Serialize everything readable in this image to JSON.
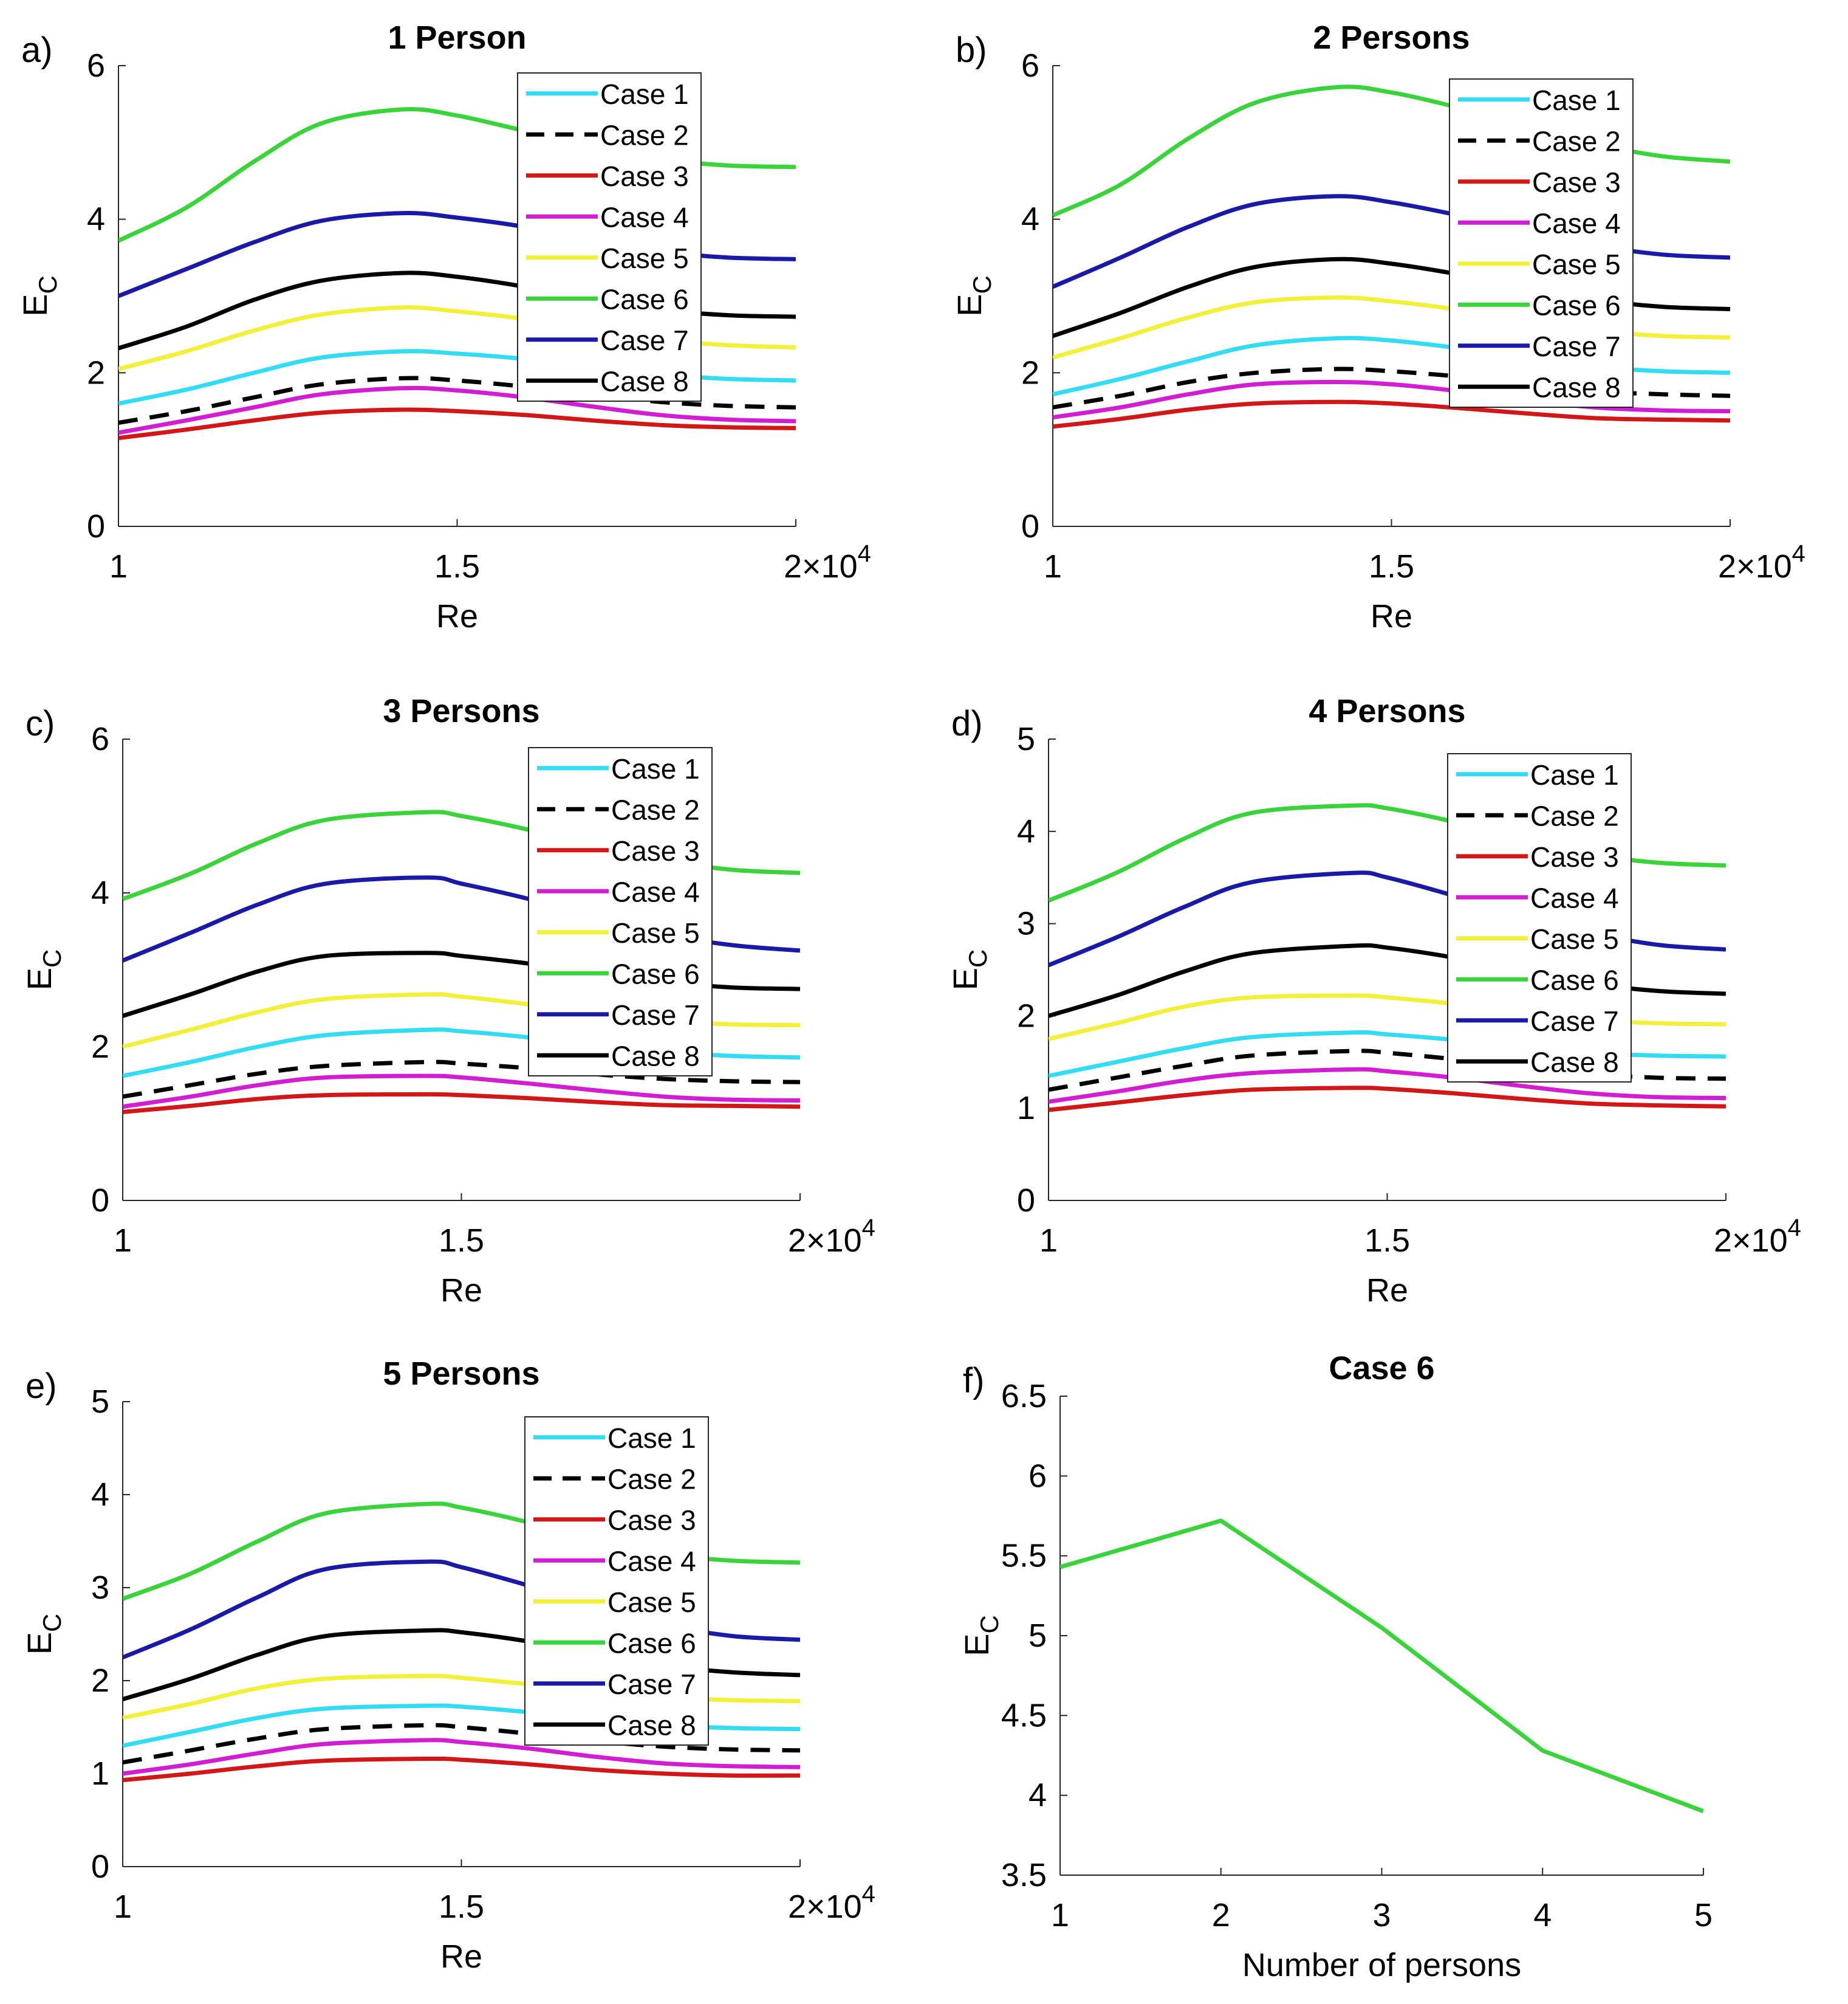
{
  "figure": {
    "panels_label": "Six subplots of E_C versus Re and versus number of persons"
  },
  "chart_data": [
    {
      "type": "line",
      "panel_letter": "a)",
      "title": "1 Person",
      "xlabel": "Re",
      "ylabel": "E",
      "ylabel_sub": "C",
      "xlim": [
        1,
        2
      ],
      "ylim": [
        0,
        6
      ],
      "x_exponent_prefix": "2×10",
      "x_exponent": "4",
      "xticks": [
        {
          "v": 1,
          "label": "1"
        },
        {
          "v": 1.5,
          "label": "1.5"
        }
      ],
      "yticks": [
        {
          "v": 0,
          "label": "0"
        },
        {
          "v": 2,
          "label": "2"
        },
        {
          "v": 4,
          "label": "4"
        },
        {
          "v": 6,
          "label": "6"
        }
      ],
      "x": [
        1.0,
        1.1,
        1.2,
        1.3,
        1.42,
        1.5,
        1.6,
        1.7,
        1.8,
        1.9,
        2.0
      ],
      "series": [
        {
          "name": "Case 1",
          "color": "#33dcf2",
          "dash": "",
          "values": [
            1.6,
            1.78,
            2.0,
            2.2,
            2.28,
            2.25,
            2.18,
            2.08,
            1.98,
            1.92,
            1.9
          ]
        },
        {
          "name": "Case 2",
          "color": "#000000",
          "dash": "dash",
          "values": [
            1.35,
            1.5,
            1.68,
            1.85,
            1.93,
            1.9,
            1.82,
            1.72,
            1.62,
            1.57,
            1.55
          ]
        },
        {
          "name": "Case 3",
          "color": "#d01818",
          "dash": "",
          "values": [
            1.15,
            1.26,
            1.38,
            1.48,
            1.52,
            1.5,
            1.45,
            1.38,
            1.32,
            1.29,
            1.28
          ]
        },
        {
          "name": "Case 4",
          "color": "#d21ed2",
          "dash": "",
          "values": [
            1.22,
            1.38,
            1.55,
            1.72,
            1.8,
            1.77,
            1.68,
            1.56,
            1.45,
            1.39,
            1.37
          ]
        },
        {
          "name": "Case 5",
          "color": "#f2f03a",
          "dash": "",
          "values": [
            2.05,
            2.28,
            2.55,
            2.76,
            2.85,
            2.8,
            2.7,
            2.56,
            2.43,
            2.36,
            2.33
          ]
        },
        {
          "name": "Case 6",
          "color": "#3bd33b",
          "dash": "",
          "values": [
            3.72,
            4.15,
            4.75,
            5.25,
            5.43,
            5.35,
            5.15,
            4.95,
            4.78,
            4.7,
            4.68
          ]
        },
        {
          "name": "Case 7",
          "color": "#1a1aa6",
          "dash": "",
          "values": [
            3.0,
            3.35,
            3.7,
            3.98,
            4.08,
            4.02,
            3.9,
            3.72,
            3.58,
            3.5,
            3.48
          ]
        },
        {
          "name": "Case 8",
          "color": "#000000",
          "dash": "",
          "values": [
            2.32,
            2.6,
            2.95,
            3.2,
            3.3,
            3.25,
            3.12,
            2.95,
            2.82,
            2.75,
            2.73
          ]
        }
      ]
    },
    {
      "type": "line",
      "panel_letter": "b)",
      "title": "2 Persons",
      "xlabel": "Re",
      "ylabel": "E",
      "ylabel_sub": "C",
      "xlim": [
        1,
        2
      ],
      "ylim": [
        0,
        6
      ],
      "x_exponent_prefix": "2×10",
      "x_exponent": "4",
      "xticks": [
        {
          "v": 1,
          "label": "1"
        },
        {
          "v": 1.5,
          "label": "1.5"
        }
      ],
      "yticks": [
        {
          "v": 0,
          "label": "0"
        },
        {
          "v": 2,
          "label": "2"
        },
        {
          "v": 4,
          "label": "4"
        },
        {
          "v": 6,
          "label": "6"
        }
      ],
      "x": [
        1.0,
        1.1,
        1.2,
        1.3,
        1.42,
        1.5,
        1.6,
        1.7,
        1.8,
        1.9,
        2.0
      ],
      "series": [
        {
          "name": "Case 1",
          "color": "#33dcf2",
          "dash": "",
          "values": [
            1.72,
            1.92,
            2.15,
            2.36,
            2.45,
            2.42,
            2.32,
            2.2,
            2.08,
            2.02,
            2.0
          ]
        },
        {
          "name": "Case 2",
          "color": "#000000",
          "dash": "dash",
          "values": [
            1.55,
            1.7,
            1.88,
            2.0,
            2.05,
            2.02,
            1.95,
            1.85,
            1.76,
            1.72,
            1.7
          ]
        },
        {
          "name": "Case 3",
          "color": "#d01818",
          "dash": "",
          "values": [
            1.3,
            1.4,
            1.52,
            1.6,
            1.62,
            1.6,
            1.54,
            1.47,
            1.41,
            1.39,
            1.38
          ]
        },
        {
          "name": "Case 4",
          "color": "#d21ed2",
          "dash": "",
          "values": [
            1.42,
            1.55,
            1.72,
            1.85,
            1.88,
            1.85,
            1.76,
            1.64,
            1.55,
            1.51,
            1.5
          ]
        },
        {
          "name": "Case 5",
          "color": "#f2f03a",
          "dash": "",
          "values": [
            2.2,
            2.45,
            2.72,
            2.92,
            2.98,
            2.93,
            2.82,
            2.68,
            2.55,
            2.48,
            2.46
          ]
        },
        {
          "name": "Case 6",
          "color": "#3bd33b",
          "dash": "",
          "values": [
            4.05,
            4.45,
            5.05,
            5.52,
            5.72,
            5.65,
            5.45,
            5.2,
            4.98,
            4.82,
            4.75
          ]
        },
        {
          "name": "Case 7",
          "color": "#1a1aa6",
          "dash": "",
          "values": [
            3.12,
            3.5,
            3.9,
            4.2,
            4.3,
            4.22,
            4.05,
            3.85,
            3.66,
            3.54,
            3.5
          ]
        },
        {
          "name": "Case 8",
          "color": "#000000",
          "dash": "",
          "values": [
            2.48,
            2.78,
            3.12,
            3.38,
            3.48,
            3.42,
            3.28,
            3.1,
            2.95,
            2.86,
            2.83
          ]
        }
      ]
    },
    {
      "type": "line",
      "panel_letter": "c)",
      "title": "3 Persons",
      "xlabel": "Re",
      "ylabel": "E",
      "ylabel_sub": "C",
      "xlim": [
        1,
        2
      ],
      "ylim": [
        0,
        6
      ],
      "x_exponent_prefix": "2×10",
      "x_exponent": "4",
      "xticks": [
        {
          "v": 1,
          "label": "1"
        },
        {
          "v": 1.5,
          "label": "1.5"
        }
      ],
      "yticks": [
        {
          "v": 0,
          "label": "0"
        },
        {
          "v": 2,
          "label": "2"
        },
        {
          "v": 4,
          "label": "4"
        },
        {
          "v": 6,
          "label": "6"
        }
      ],
      "x": [
        1.0,
        1.1,
        1.2,
        1.3,
        1.45,
        1.5,
        1.6,
        1.7,
        1.8,
        1.9,
        2.0
      ],
      "series": [
        {
          "name": "Case 1",
          "color": "#33dcf2",
          "dash": "",
          "values": [
            1.62,
            1.8,
            2.0,
            2.15,
            2.22,
            2.2,
            2.12,
            2.02,
            1.93,
            1.88,
            1.86
          ]
        },
        {
          "name": "Case 2",
          "color": "#000000",
          "dash": "dash",
          "values": [
            1.35,
            1.5,
            1.65,
            1.75,
            1.8,
            1.78,
            1.72,
            1.64,
            1.58,
            1.55,
            1.54
          ]
        },
        {
          "name": "Case 3",
          "color": "#d01818",
          "dash": "",
          "values": [
            1.15,
            1.23,
            1.32,
            1.37,
            1.38,
            1.37,
            1.33,
            1.28,
            1.24,
            1.23,
            1.22
          ]
        },
        {
          "name": "Case 4",
          "color": "#d21ed2",
          "dash": "",
          "values": [
            1.22,
            1.35,
            1.5,
            1.6,
            1.62,
            1.6,
            1.52,
            1.43,
            1.35,
            1.31,
            1.3
          ]
        },
        {
          "name": "Case 5",
          "color": "#f2f03a",
          "dash": "",
          "values": [
            2.0,
            2.22,
            2.45,
            2.62,
            2.68,
            2.65,
            2.55,
            2.43,
            2.34,
            2.29,
            2.28
          ]
        },
        {
          "name": "Case 6",
          "color": "#3bd33b",
          "dash": "",
          "values": [
            3.92,
            4.25,
            4.65,
            4.95,
            5.05,
            5.0,
            4.82,
            4.6,
            4.42,
            4.3,
            4.26
          ]
        },
        {
          "name": "Case 7",
          "color": "#1a1aa6",
          "dash": "",
          "values": [
            3.12,
            3.48,
            3.85,
            4.12,
            4.2,
            4.12,
            3.92,
            3.68,
            3.46,
            3.32,
            3.25
          ]
        },
        {
          "name": "Case 8",
          "color": "#000000",
          "dash": "",
          "values": [
            2.4,
            2.68,
            2.98,
            3.18,
            3.22,
            3.18,
            3.08,
            2.95,
            2.84,
            2.77,
            2.75
          ]
        }
      ]
    },
    {
      "type": "line",
      "panel_letter": "d)",
      "title": "4 Persons",
      "xlabel": "Re",
      "ylabel": "E",
      "ylabel_sub": "C",
      "xlim": [
        1,
        2
      ],
      "ylim": [
        0,
        5
      ],
      "x_exponent_prefix": "2×10",
      "x_exponent": "4",
      "xticks": [
        {
          "v": 1,
          "label": "1"
        },
        {
          "v": 1.5,
          "label": "1.5"
        }
      ],
      "yticks": [
        {
          "v": 0,
          "label": "0"
        },
        {
          "v": 1,
          "label": "1"
        },
        {
          "v": 2,
          "label": "2"
        },
        {
          "v": 3,
          "label": "3"
        },
        {
          "v": 4,
          "label": "4"
        },
        {
          "v": 5,
          "label": "5"
        }
      ],
      "x": [
        1.0,
        1.1,
        1.2,
        1.3,
        1.45,
        1.5,
        1.6,
        1.7,
        1.8,
        1.9,
        2.0
      ],
      "series": [
        {
          "name": "Case 1",
          "color": "#33dcf2",
          "dash": "",
          "values": [
            1.35,
            1.5,
            1.65,
            1.77,
            1.82,
            1.8,
            1.74,
            1.66,
            1.6,
            1.57,
            1.56
          ]
        },
        {
          "name": "Case 2",
          "color": "#000000",
          "dash": "dash",
          "values": [
            1.2,
            1.33,
            1.46,
            1.57,
            1.62,
            1.6,
            1.53,
            1.44,
            1.37,
            1.33,
            1.32
          ]
        },
        {
          "name": "Case 3",
          "color": "#d01818",
          "dash": "",
          "values": [
            0.98,
            1.06,
            1.14,
            1.2,
            1.22,
            1.21,
            1.16,
            1.1,
            1.05,
            1.03,
            1.02
          ]
        },
        {
          "name": "Case 4",
          "color": "#d21ed2",
          "dash": "",
          "values": [
            1.07,
            1.18,
            1.3,
            1.38,
            1.42,
            1.4,
            1.33,
            1.24,
            1.16,
            1.12,
            1.11
          ]
        },
        {
          "name": "Case 5",
          "color": "#f2f03a",
          "dash": "",
          "values": [
            1.75,
            1.92,
            2.1,
            2.2,
            2.22,
            2.2,
            2.13,
            2.03,
            1.96,
            1.92,
            1.91
          ]
        },
        {
          "name": "Case 6",
          "color": "#3bd33b",
          "dash": "",
          "values": [
            3.25,
            3.55,
            3.92,
            4.2,
            4.28,
            4.25,
            4.1,
            3.9,
            3.75,
            3.66,
            3.63
          ]
        },
        {
          "name": "Case 7",
          "color": "#1a1aa6",
          "dash": "",
          "values": [
            2.55,
            2.85,
            3.18,
            3.45,
            3.55,
            3.5,
            3.3,
            3.08,
            2.9,
            2.77,
            2.72
          ]
        },
        {
          "name": "Case 8",
          "color": "#000000",
          "dash": "",
          "values": [
            2.0,
            2.22,
            2.48,
            2.68,
            2.76,
            2.74,
            2.63,
            2.48,
            2.35,
            2.27,
            2.24
          ]
        }
      ]
    },
    {
      "type": "line",
      "panel_letter": "e)",
      "title": "5 Persons",
      "xlabel": "Re",
      "ylabel": "E",
      "ylabel_sub": "C",
      "xlim": [
        1,
        2
      ],
      "ylim": [
        0,
        5
      ],
      "x_exponent_prefix": "2×10",
      "x_exponent": "4",
      "xticks": [
        {
          "v": 1,
          "label": "1"
        },
        {
          "v": 1.5,
          "label": "1.5"
        }
      ],
      "yticks": [
        {
          "v": 0,
          "label": "0"
        },
        {
          "v": 1,
          "label": "1"
        },
        {
          "v": 2,
          "label": "2"
        },
        {
          "v": 3,
          "label": "3"
        },
        {
          "v": 4,
          "label": "4"
        },
        {
          "v": 5,
          "label": "5"
        }
      ],
      "x": [
        1.0,
        1.1,
        1.2,
        1.3,
        1.45,
        1.5,
        1.6,
        1.7,
        1.8,
        1.9,
        2.0
      ],
      "series": [
        {
          "name": "Case 1",
          "color": "#33dcf2",
          "dash": "",
          "values": [
            1.3,
            1.45,
            1.6,
            1.7,
            1.73,
            1.72,
            1.66,
            1.58,
            1.52,
            1.49,
            1.48
          ]
        },
        {
          "name": "Case 2",
          "color": "#000000",
          "dash": "dash",
          "values": [
            1.12,
            1.25,
            1.38,
            1.48,
            1.52,
            1.5,
            1.43,
            1.35,
            1.29,
            1.26,
            1.25
          ]
        },
        {
          "name": "Case 3",
          "color": "#d01818",
          "dash": "",
          "values": [
            0.93,
            1.0,
            1.08,
            1.14,
            1.16,
            1.15,
            1.1,
            1.04,
            1.0,
            0.98,
            0.98
          ]
        },
        {
          "name": "Case 4",
          "color": "#d21ed2",
          "dash": "",
          "values": [
            1.0,
            1.1,
            1.22,
            1.32,
            1.36,
            1.34,
            1.27,
            1.18,
            1.11,
            1.08,
            1.07
          ]
        },
        {
          "name": "Case 5",
          "color": "#f2f03a",
          "dash": "",
          "values": [
            1.6,
            1.75,
            1.92,
            2.02,
            2.05,
            2.03,
            1.96,
            1.88,
            1.82,
            1.79,
            1.78
          ]
        },
        {
          "name": "Case 6",
          "color": "#3bd33b",
          "dash": "",
          "values": [
            2.88,
            3.15,
            3.5,
            3.8,
            3.9,
            3.86,
            3.7,
            3.5,
            3.36,
            3.29,
            3.27
          ]
        },
        {
          "name": "Case 7",
          "color": "#1a1aa6",
          "dash": "",
          "values": [
            2.25,
            2.55,
            2.9,
            3.2,
            3.28,
            3.22,
            3.02,
            2.8,
            2.6,
            2.48,
            2.44
          ]
        },
        {
          "name": "Case 8",
          "color": "#000000",
          "dash": "",
          "values": [
            1.8,
            2.02,
            2.28,
            2.48,
            2.54,
            2.52,
            2.42,
            2.28,
            2.16,
            2.09,
            2.06
          ]
        }
      ]
    },
    {
      "type": "line",
      "panel_letter": "f)",
      "title": "Case 6",
      "xlabel": "Number of persons",
      "ylabel": "E",
      "ylabel_sub": "C",
      "xlim": [
        1,
        5
      ],
      "ylim": [
        3.5,
        6.5
      ],
      "x_exponent_prefix": "",
      "x_exponent": "",
      "xticks": [
        {
          "v": 1,
          "label": "1"
        },
        {
          "v": 2,
          "label": "2"
        },
        {
          "v": 3,
          "label": "3"
        },
        {
          "v": 4,
          "label": "4"
        },
        {
          "v": 5,
          "label": "5"
        }
      ],
      "yticks": [
        {
          "v": 3.5,
          "label": "3.5"
        },
        {
          "v": 4,
          "label": "4"
        },
        {
          "v": 4.5,
          "label": "4.5"
        },
        {
          "v": 5,
          "label": "5"
        },
        {
          "v": 5.5,
          "label": "5.5"
        },
        {
          "v": 6,
          "label": "6"
        },
        {
          "v": 6.5,
          "label": "6.5"
        }
      ],
      "x": [
        1,
        2,
        3,
        4,
        5
      ],
      "series": [
        {
          "color": "#3bd33b",
          "dash": "",
          "values": [
            5.43,
            5.72,
            5.05,
            4.28,
            3.9
          ]
        }
      ]
    }
  ]
}
